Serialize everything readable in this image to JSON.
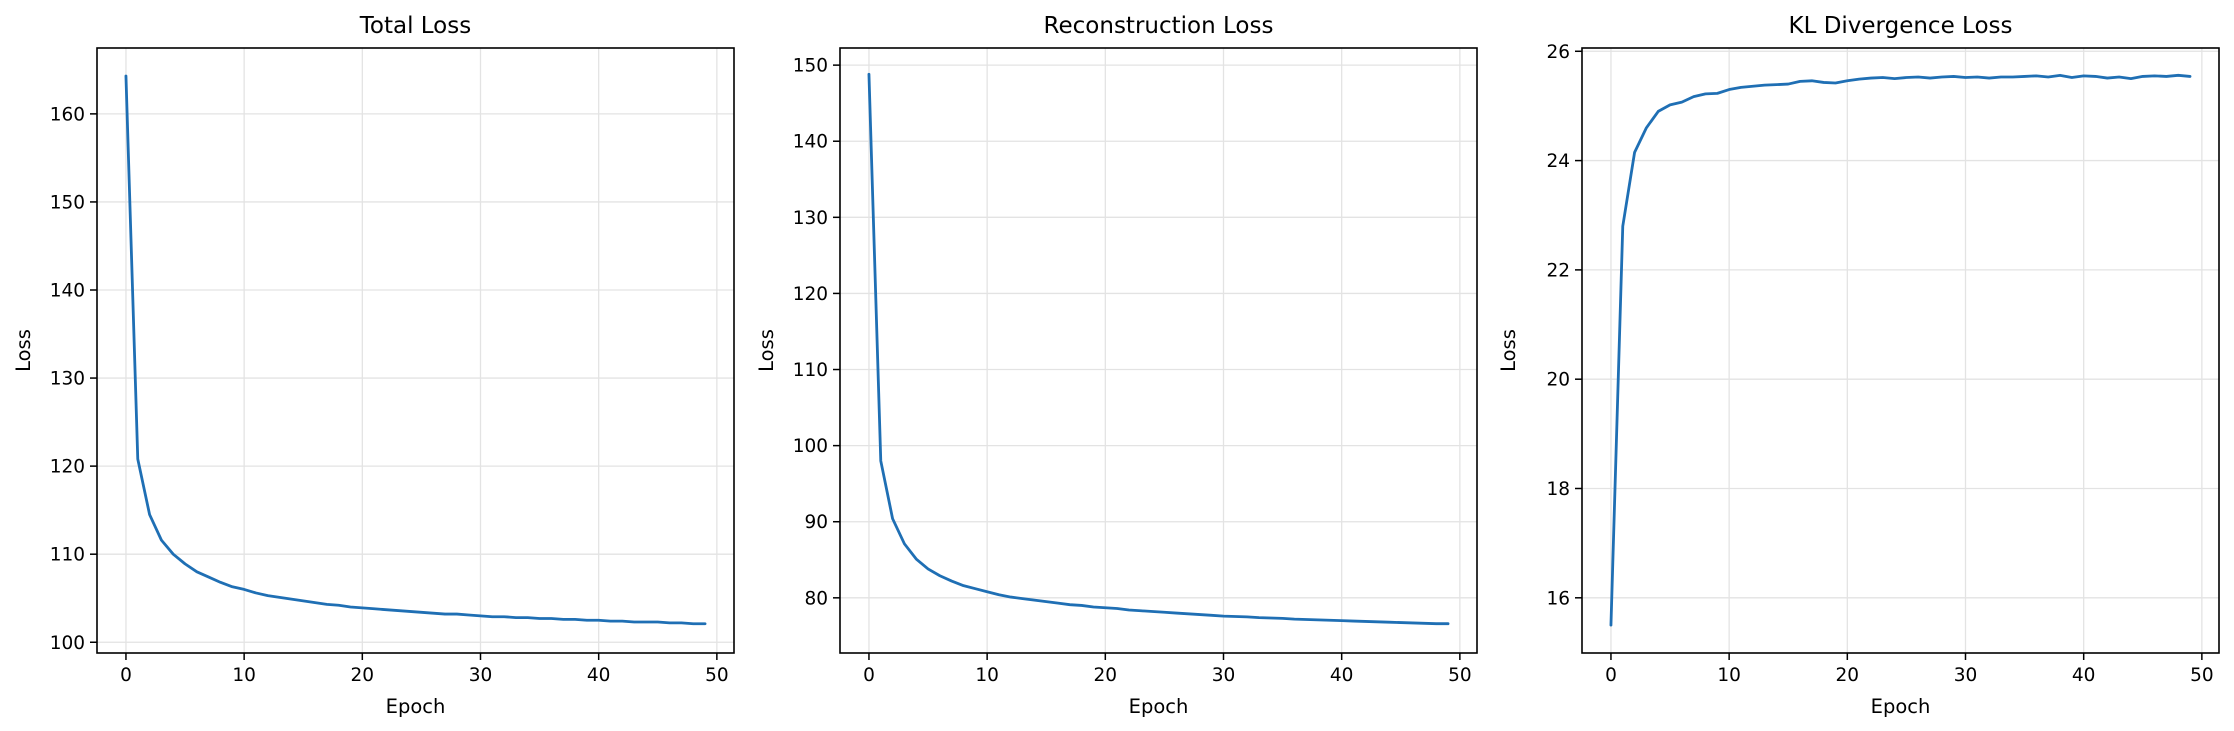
{
  "theme": {
    "line_color": "#1f6fb4",
    "grid_color": "#e3e3e3"
  },
  "chart_data": [
    {
      "type": "line",
      "title": "Total Loss",
      "xlabel": "Epoch",
      "ylabel": "Loss",
      "xlim": [
        -2.45,
        51.45
      ],
      "ylim": [
        98.78,
        167.48
      ],
      "xticks": [
        0,
        10,
        20,
        30,
        40,
        50
      ],
      "yticks": [
        100,
        110,
        120,
        130,
        140,
        150,
        160
      ],
      "grid": true,
      "series": [
        {
          "x": [
            0,
            1,
            2,
            3,
            4,
            5,
            6,
            7,
            8,
            9,
            10,
            11,
            12,
            13,
            14,
            15,
            16,
            17,
            18,
            19,
            20,
            21,
            22,
            23,
            24,
            25,
            26,
            27,
            28,
            29,
            30,
            31,
            32,
            33,
            34,
            35,
            36,
            37,
            38,
            39,
            40,
            41,
            42,
            43,
            44,
            45,
            46,
            47,
            48,
            49
          ],
          "values": [
            164.3,
            120.8,
            114.5,
            111.6,
            110.0,
            108.9,
            108.0,
            107.4,
            106.8,
            106.3,
            106.0,
            105.6,
            105.3,
            105.1,
            104.9,
            104.7,
            104.5,
            104.3,
            104.2,
            104.0,
            103.9,
            103.8,
            103.7,
            103.6,
            103.5,
            103.4,
            103.3,
            103.2,
            103.2,
            103.1,
            103.0,
            102.9,
            102.9,
            102.8,
            102.8,
            102.7,
            102.7,
            102.6,
            102.6,
            102.5,
            102.5,
            102.4,
            102.4,
            102.3,
            102.3,
            102.3,
            102.2,
            102.2,
            102.1,
            102.1
          ]
        }
      ]
    },
    {
      "type": "line",
      "title": "Reconstruction Loss",
      "xlabel": "Epoch",
      "ylabel": "Loss",
      "xlim": [
        -2.45,
        51.45
      ],
      "ylim": [
        72.75,
        152.25
      ],
      "xticks": [
        0,
        10,
        20,
        30,
        40,
        50
      ],
      "yticks": [
        80,
        90,
        100,
        110,
        120,
        130,
        140,
        150
      ],
      "grid": true,
      "series": [
        {
          "x": [
            0,
            1,
            2,
            3,
            4,
            5,
            6,
            7,
            8,
            9,
            10,
            11,
            12,
            13,
            14,
            15,
            16,
            17,
            18,
            19,
            20,
            21,
            22,
            23,
            24,
            25,
            26,
            27,
            28,
            29,
            30,
            31,
            32,
            33,
            34,
            35,
            36,
            37,
            38,
            39,
            40,
            41,
            42,
            43,
            44,
            45,
            46,
            47,
            48,
            49
          ],
          "values": [
            148.8,
            98.0,
            90.4,
            87.1,
            85.1,
            83.8,
            82.9,
            82.2,
            81.6,
            81.2,
            80.8,
            80.4,
            80.1,
            79.9,
            79.7,
            79.5,
            79.3,
            79.1,
            79.0,
            78.8,
            78.7,
            78.6,
            78.4,
            78.3,
            78.2,
            78.1,
            78.0,
            77.9,
            77.8,
            77.7,
            77.6,
            77.55,
            77.5,
            77.4,
            77.35,
            77.3,
            77.2,
            77.15,
            77.1,
            77.05,
            77.0,
            76.95,
            76.9,
            76.85,
            76.8,
            76.75,
            76.7,
            76.65,
            76.6,
            76.6
          ]
        }
      ]
    },
    {
      "type": "line",
      "title": "KL Divergence Loss",
      "xlabel": "Epoch",
      "ylabel": "Loss",
      "xlim": [
        -2.45,
        51.45
      ],
      "ylim": [
        14.99,
        26.06
      ],
      "xticks": [
        0,
        10,
        20,
        30,
        40,
        50
      ],
      "yticks": [
        16,
        18,
        20,
        22,
        24,
        26
      ],
      "grid": true,
      "series": [
        {
          "x": [
            0,
            1,
            2,
            3,
            4,
            5,
            6,
            7,
            8,
            9,
            10,
            11,
            12,
            13,
            14,
            15,
            16,
            17,
            18,
            19,
            20,
            21,
            22,
            23,
            24,
            25,
            26,
            27,
            28,
            29,
            30,
            31,
            32,
            33,
            34,
            35,
            36,
            37,
            38,
            39,
            40,
            41,
            42,
            43,
            44,
            45,
            46,
            47,
            48,
            49
          ],
          "values": [
            15.5,
            22.8,
            24.15,
            24.6,
            24.9,
            25.02,
            25.07,
            25.17,
            25.22,
            25.23,
            25.3,
            25.34,
            25.36,
            25.38,
            25.39,
            25.4,
            25.45,
            25.46,
            25.43,
            25.42,
            25.46,
            25.49,
            25.51,
            25.52,
            25.5,
            25.52,
            25.53,
            25.51,
            25.53,
            25.54,
            25.52,
            25.53,
            25.51,
            25.53,
            25.53,
            25.54,
            25.55,
            25.53,
            25.56,
            25.52,
            25.55,
            25.54,
            25.51,
            25.53,
            25.5,
            25.54,
            25.55,
            25.54,
            25.56,
            25.54
          ]
        }
      ]
    }
  ]
}
